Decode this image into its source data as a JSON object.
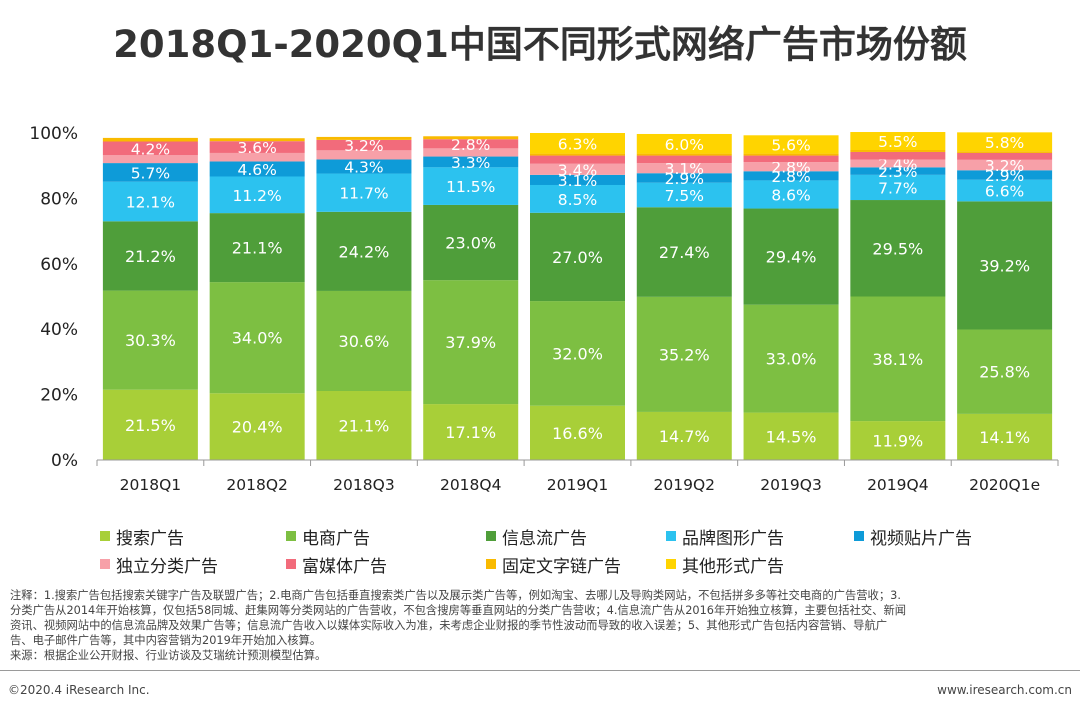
{
  "title": "2018Q1-2020Q1中国不同形式网络广告市场份额",
  "chart_data": {
    "type": "bar",
    "stacked": true,
    "categories": [
      "2018Q1",
      "2018Q2",
      "2018Q3",
      "2018Q4",
      "2019Q1",
      "2019Q2",
      "2019Q3",
      "2019Q4",
      "2020Q1e"
    ],
    "ylim": [
      0,
      100
    ],
    "yticks": [
      "0%",
      "20%",
      "40%",
      "60%",
      "80%",
      "100%"
    ],
    "series": [
      {
        "name": "搜索广告",
        "color": "#a8cf38",
        "values": [
          21.5,
          20.4,
          21.1,
          17.1,
          16.6,
          14.7,
          14.5,
          11.9,
          14.1
        ]
      },
      {
        "name": "电商广告",
        "color": "#7dbf42",
        "values": [
          30.3,
          34.0,
          30.6,
          37.9,
          32.0,
          35.2,
          33.0,
          38.1,
          25.8
        ]
      },
      {
        "name": "信息流广告",
        "color": "#4f9e3a",
        "values": [
          21.2,
          21.1,
          24.2,
          23.0,
          27.0,
          27.4,
          29.4,
          29.5,
          39.2
        ]
      },
      {
        "name": "品牌图形广告",
        "color": "#2cc2ef",
        "values": [
          12.1,
          11.2,
          11.7,
          11.5,
          8.5,
          7.5,
          8.6,
          7.7,
          6.6
        ]
      },
      {
        "name": "视频贴片广告",
        "color": "#0e9bd8",
        "values": [
          5.7,
          4.6,
          4.3,
          3.3,
          3.1,
          2.9,
          2.8,
          2.3,
          2.9
        ]
      },
      {
        "name": "独立分类广告",
        "color": "#f7a0a8",
        "values": [
          2.4,
          2.6,
          2.8,
          2.5,
          3.4,
          3.1,
          2.8,
          2.4,
          3.2
        ]
      },
      {
        "name": "富媒体广告",
        "color": "#f26b7b",
        "values": [
          4.2,
          3.6,
          3.2,
          2.8,
          2.5,
          2.3,
          2.0,
          2.3,
          2.1
        ]
      },
      {
        "name": "固定文字链广告",
        "color": "#f9ba00",
        "values": [
          1.1,
          0.9,
          0.9,
          0.9,
          0.6,
          0.6,
          0.6,
          0.6,
          0.5
        ]
      },
      {
        "name": "其他形式广告",
        "color": "#ffd400",
        "values": [
          0,
          0,
          0,
          0,
          6.3,
          6.0,
          5.6,
          5.5,
          5.8
        ]
      }
    ],
    "labels": [
      [
        "21.5%",
        "30.3%",
        "21.2%",
        "12.1%",
        "5.7%",
        "",
        "4.2%",
        "",
        ""
      ],
      [
        "20.4%",
        "34.0%",
        "21.1%",
        "11.2%",
        "4.6%",
        "",
        "3.6%",
        "",
        ""
      ],
      [
        "21.1%",
        "30.6%",
        "24.2%",
        "11.7%",
        "4.3%",
        "",
        "3.2%",
        "",
        ""
      ],
      [
        "17.1%",
        "37.9%",
        "23.0%",
        "11.5%",
        "3.3%",
        "",
        "2.8%",
        "",
        ""
      ],
      [
        "16.6%",
        "32.0%",
        "27.0%",
        "8.5%",
        "3.1%",
        "3.4%",
        "",
        "",
        "6.3%"
      ],
      [
        "14.7%",
        "35.2%",
        "27.4%",
        "7.5%",
        "2.9%",
        "3.1%",
        "",
        "",
        "6.0%"
      ],
      [
        "14.5%",
        "33.0%",
        "29.4%",
        "8.6%",
        "2.8%",
        "2.8%",
        "",
        "",
        "5.6%"
      ],
      [
        "11.9%",
        "38.1%",
        "29.5%",
        "7.7%",
        "2.3%",
        "2.4%",
        "",
        "",
        "5.5%"
      ],
      [
        "14.1%",
        "25.8%",
        "39.2%",
        "6.6%",
        "2.9%",
        "3.2%",
        "",
        "",
        "5.8%"
      ]
    ]
  },
  "legend": {
    "row1": [
      "搜索广告",
      "电商广告",
      "信息流广告",
      "品牌图形广告",
      "视频贴片广告"
    ],
    "row2": [
      "独立分类广告",
      "富媒体广告",
      "固定文字链广告",
      "其他形式广告"
    ]
  },
  "notes": {
    "line1": "注释：1.搜索广告包括搜索关键字广告及联盟广告；2.电商广告包括垂直搜索类广告以及展示类广告等，例如淘宝、去哪儿及导购类网站，不包括拼多多等社交电商的广告营收；3.",
    "line2": "分类广告从2014年开始核算，仅包括58同城、赶集网等分类网站的广告营收，不包含搜房等垂直网站的分类广告营收；4.信息流广告从2016年开始独立核算，主要包括社交、新闻",
    "line3": "资讯、视频网站中的信息流品牌及效果广告等；信息流广告收入以媒体实际收入为准，未考虑企业财报的季节性波动而导致的收入误差；5、其他形式广告包括内容营销、导航广",
    "line4": "告、电子邮件广告等，其中内容营销为2019年开始加入核算。",
    "source": "来源：根据企业公开财报、行业访谈及艾瑞统计预测模型估算。"
  },
  "footer": {
    "left": "©2020.4 iResearch Inc.",
    "right": "www.iresearch.com.cn"
  }
}
